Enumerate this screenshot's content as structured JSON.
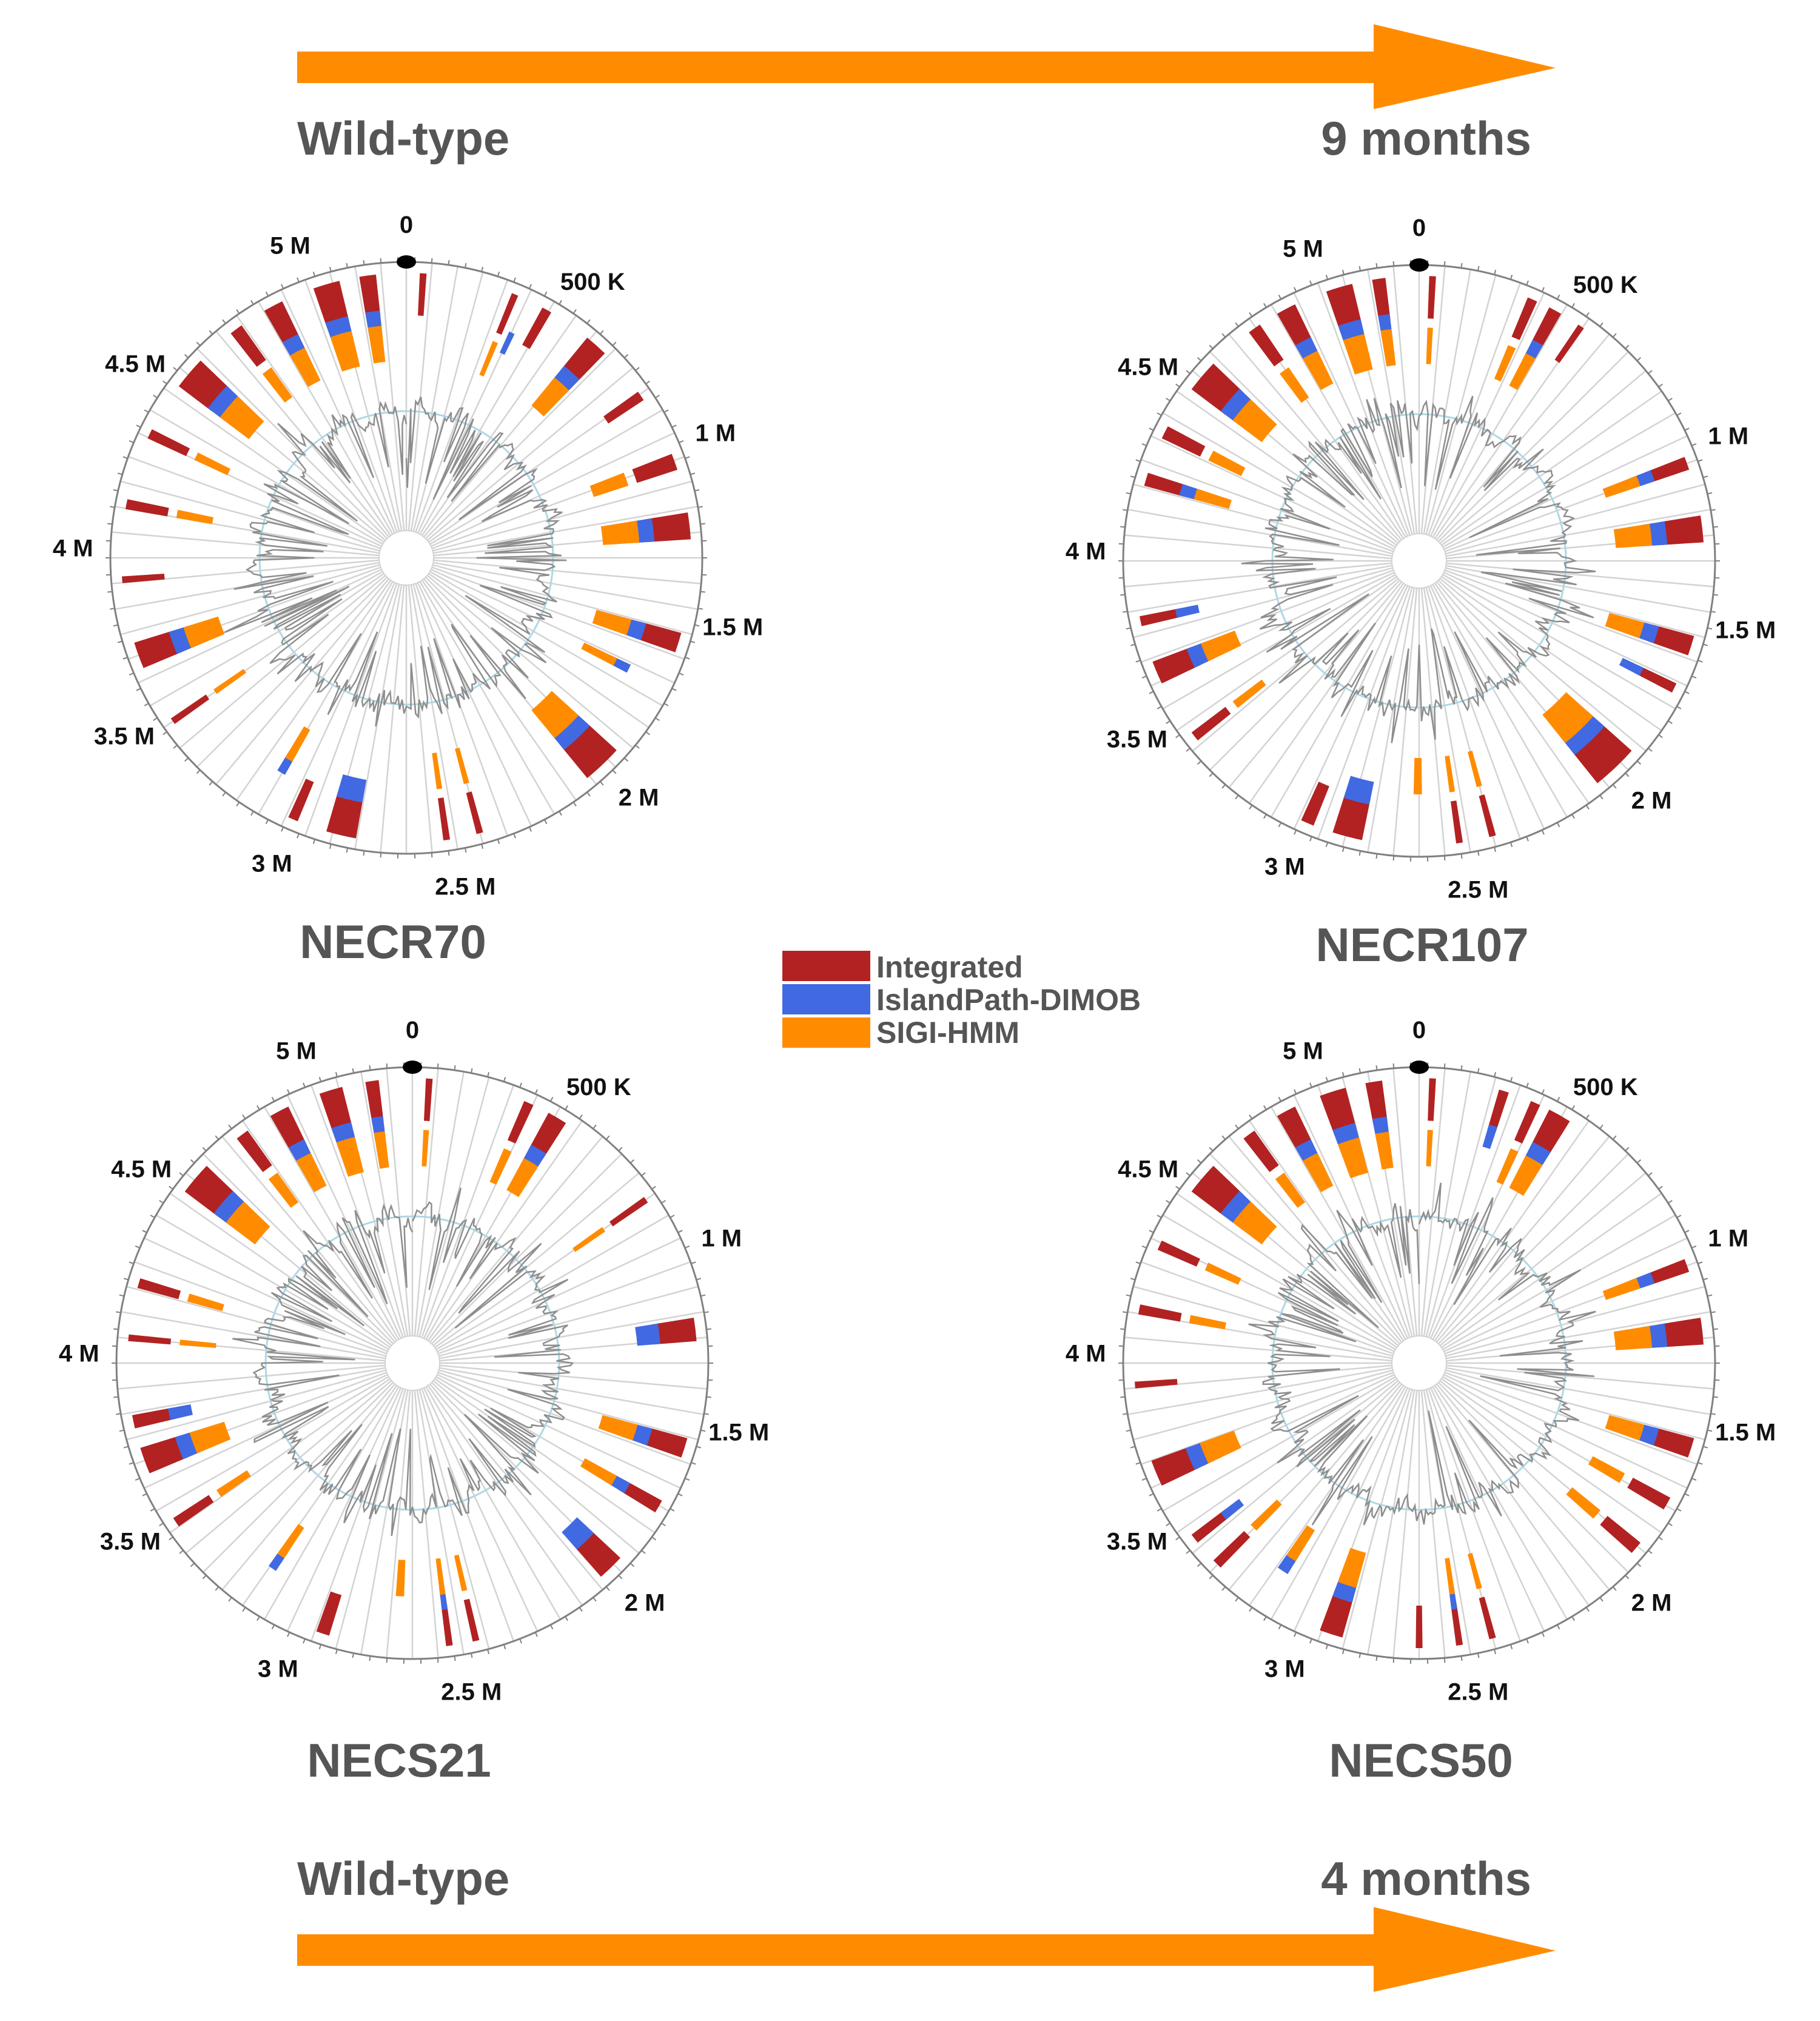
{
  "colors": {
    "integrated": "#b22222",
    "islandpath": "#4169e1",
    "sigi": "#ff8c00",
    "arrow": "#ff8c00",
    "ring": "#808080",
    "spoke": "#d3d3d3",
    "gc_line": "#8e8e8e",
    "gc_baseline": "#add8e6",
    "text_dark": "#555555",
    "origin_dot": "#000000"
  },
  "top_row": {
    "left_label": "Wild-type",
    "right_label": "9 months"
  },
  "bottom_row": {
    "left_label": "Wild-type",
    "right_label": "4 months"
  },
  "legend": {
    "items": [
      {
        "label": "Integrated",
        "color_key": "integrated"
      },
      {
        "label": "IslandPath-DIMOB",
        "color_key": "islandpath"
      },
      {
        "label": "SIGI-HMM",
        "color_key": "sigi"
      }
    ]
  },
  "genome_ticks": [
    "0",
    "500 K",
    "1 M",
    "1.5 M",
    "2 M",
    "2.5 M",
    "3 M",
    "3.5 M",
    "4 M",
    "4.5 M",
    "5 M"
  ],
  "genome_size_mb": 5.3,
  "maps": [
    {
      "name": "NECR70",
      "islands": [
        {
          "pos": 0.04,
          "len": 0.02,
          "methods": [
            "integrated"
          ]
        },
        {
          "pos": 0.32,
          "len": 0.02,
          "methods": [
            "integrated",
            "sigi"
          ]
        },
        {
          "pos": 0.36,
          "len": 0.02,
          "methods": [
            "islandpath"
          ]
        },
        {
          "pos": 0.42,
          "len": 0.03,
          "methods": [
            "integrated"
          ]
        },
        {
          "pos": 0.58,
          "len": 0.07,
          "methods": [
            "integrated",
            "islandpath",
            "sigi"
          ]
        },
        {
          "pos": 0.8,
          "len": 0.03,
          "methods": [
            "integrated"
          ]
        },
        {
          "pos": 1.01,
          "len": 0.05,
          "methods": [
            "integrated",
            "sigi"
          ]
        },
        {
          "pos": 1.19,
          "len": 0.08,
          "methods": [
            "integrated",
            "islandpath",
            "sigi"
          ]
        },
        {
          "pos": 1.55,
          "len": 0.06,
          "methods": [
            "integrated",
            "islandpath",
            "sigi"
          ]
        },
        {
          "pos": 1.7,
          "len": 0.03,
          "methods": [
            "islandpath",
            "sigi"
          ]
        },
        {
          "pos": 1.95,
          "len": 0.12,
          "methods": [
            "integrated",
            "islandpath",
            "sigi"
          ]
        },
        {
          "pos": 2.42,
          "len": 0.02,
          "methods": [
            "integrated",
            "sigi"
          ]
        },
        {
          "pos": 2.52,
          "len": 0.02,
          "methods": [
            "integrated",
            "sigi"
          ]
        },
        {
          "pos": 2.8,
          "len": 0.09,
          "methods": [
            "integrated",
            "islandpath"
          ]
        },
        {
          "pos": 2.98,
          "len": 0.03,
          "methods": [
            "integrated"
          ]
        },
        {
          "pos": 3.08,
          "len": 0.03,
          "methods": [
            "islandpath",
            "sigi"
          ]
        },
        {
          "pos": 3.45,
          "len": 0.02,
          "methods": [
            "integrated",
            "sigi"
          ]
        },
        {
          "pos": 3.64,
          "len": 0.08,
          "methods": [
            "integrated",
            "islandpath",
            "sigi"
          ]
        },
        {
          "pos": 3.9,
          "len": 0.02,
          "methods": [
            "integrated"
          ]
        },
        {
          "pos": 4.12,
          "len": 0.03,
          "methods": [
            "integrated",
            "sigi"
          ]
        },
        {
          "pos": 4.34,
          "len": 0.03,
          "methods": [
            "integrated",
            "sigi"
          ]
        },
        {
          "pos": 4.52,
          "len": 0.1,
          "methods": [
            "integrated",
            "islandpath",
            "sigi"
          ]
        },
        {
          "pos": 4.74,
          "len": 0.04,
          "methods": [
            "integrated",
            "sigi"
          ]
        },
        {
          "pos": 4.86,
          "len": 0.06,
          "methods": [
            "integrated",
            "islandpath",
            "sigi"
          ]
        },
        {
          "pos": 5.02,
          "len": 0.08,
          "methods": [
            "integrated",
            "islandpath",
            "sigi"
          ]
        },
        {
          "pos": 5.16,
          "len": 0.05,
          "methods": [
            "integrated",
            "islandpath",
            "sigi"
          ]
        }
      ]
    },
    {
      "name": "NECR107",
      "islands": [
        {
          "pos": 0.03,
          "len": 0.02,
          "methods": [
            "integrated",
            "sigi"
          ]
        },
        {
          "pos": 0.33,
          "len": 0.03,
          "methods": [
            "integrated",
            "sigi"
          ]
        },
        {
          "pos": 0.4,
          "len": 0.04,
          "methods": [
            "integrated",
            "islandpath",
            "sigi"
          ]
        },
        {
          "pos": 0.5,
          "len": 0.02,
          "methods": [
            "integrated"
          ]
        },
        {
          "pos": 1.01,
          "len": 0.04,
          "methods": [
            "integrated",
            "islandpath",
            "sigi"
          ]
        },
        {
          "pos": 1.19,
          "len": 0.08,
          "methods": [
            "integrated",
            "islandpath",
            "sigi"
          ]
        },
        {
          "pos": 1.55,
          "len": 0.06,
          "methods": [
            "integrated",
            "islandpath",
            "sigi"
          ]
        },
        {
          "pos": 1.7,
          "len": 0.03,
          "methods": [
            "integrated",
            "islandpath"
          ]
        },
        {
          "pos": 1.94,
          "len": 0.14,
          "methods": [
            "integrated",
            "islandpath",
            "sigi"
          ]
        },
        {
          "pos": 2.42,
          "len": 0.02,
          "methods": [
            "integrated",
            "sigi"
          ]
        },
        {
          "pos": 2.52,
          "len": 0.02,
          "methods": [
            "integrated",
            "sigi"
          ]
        },
        {
          "pos": 2.64,
          "len": 0.03,
          "methods": [
            "sigi"
          ]
        },
        {
          "pos": 2.82,
          "len": 0.09,
          "methods": [
            "integrated",
            "islandpath"
          ]
        },
        {
          "pos": 2.97,
          "len": 0.04,
          "methods": [
            "integrated"
          ]
        },
        {
          "pos": 3.4,
          "len": 0.03,
          "methods": [
            "integrated",
            "sigi"
          ]
        },
        {
          "pos": 3.6,
          "len": 0.07,
          "methods": [
            "integrated",
            "islandpath",
            "sigi"
          ]
        },
        {
          "pos": 3.78,
          "len": 0.03,
          "methods": [
            "integrated",
            "islandpath"
          ]
        },
        {
          "pos": 4.2,
          "len": 0.04,
          "methods": [
            "integrated",
            "islandpath",
            "sigi"
          ]
        },
        {
          "pos": 4.35,
          "len": 0.04,
          "methods": [
            "integrated",
            "sigi"
          ]
        },
        {
          "pos": 4.52,
          "len": 0.1,
          "methods": [
            "integrated",
            "islandpath",
            "sigi"
          ]
        },
        {
          "pos": 4.76,
          "len": 0.04,
          "methods": [
            "integrated",
            "sigi"
          ]
        },
        {
          "pos": 4.86,
          "len": 0.06,
          "methods": [
            "integrated",
            "islandpath",
            "sigi"
          ]
        },
        {
          "pos": 5.02,
          "len": 0.08,
          "methods": [
            "integrated",
            "islandpath",
            "sigi"
          ]
        },
        {
          "pos": 5.16,
          "len": 0.04,
          "methods": [
            "integrated",
            "islandpath",
            "sigi"
          ]
        }
      ]
    },
    {
      "name": "NECS21",
      "islands": [
        {
          "pos": 0.04,
          "len": 0.02,
          "methods": [
            "integrated",
            "sigi"
          ]
        },
        {
          "pos": 0.34,
          "len": 0.03,
          "methods": [
            "integrated",
            "sigi"
          ]
        },
        {
          "pos": 0.42,
          "len": 0.06,
          "methods": [
            "integrated",
            "islandpath",
            "sigi"
          ]
        },
        {
          "pos": 0.8,
          "len": 0.02,
          "methods": [
            "integrated",
            "sigi"
          ]
        },
        {
          "pos": 1.19,
          "len": 0.07,
          "methods": [
            "integrated",
            "islandpath"
          ]
        },
        {
          "pos": 1.55,
          "len": 0.06,
          "methods": [
            "integrated",
            "islandpath",
            "sigi"
          ]
        },
        {
          "pos": 1.75,
          "len": 0.04,
          "methods": [
            "integrated",
            "islandpath",
            "sigi"
          ]
        },
        {
          "pos": 1.96,
          "len": 0.08,
          "methods": [
            "integrated",
            "islandpath"
          ]
        },
        {
          "pos": 2.45,
          "len": 0.02,
          "methods": [
            "integrated",
            "sigi"
          ]
        },
        {
          "pos": 2.53,
          "len": 0.02,
          "methods": [
            "integrated",
            "islandpath",
            "sigi"
          ]
        },
        {
          "pos": 2.68,
          "len": 0.03,
          "methods": [
            "sigi"
          ]
        },
        {
          "pos": 2.9,
          "len": 0.04,
          "methods": [
            "integrated"
          ]
        },
        {
          "pos": 3.14,
          "len": 0.03,
          "methods": [
            "islandpath",
            "sigi"
          ]
        },
        {
          "pos": 3.46,
          "len": 0.03,
          "methods": [
            "integrated",
            "sigi"
          ]
        },
        {
          "pos": 3.64,
          "len": 0.08,
          "methods": [
            "integrated",
            "islandpath",
            "sigi"
          ]
        },
        {
          "pos": 3.78,
          "len": 0.04,
          "methods": [
            "integrated",
            "islandpath"
          ]
        },
        {
          "pos": 4.04,
          "len": 0.02,
          "methods": [
            "integrated",
            "sigi"
          ]
        },
        {
          "pos": 4.2,
          "len": 0.03,
          "methods": [
            "integrated",
            "sigi"
          ]
        },
        {
          "pos": 4.52,
          "len": 0.1,
          "methods": [
            "integrated",
            "islandpath",
            "sigi"
          ]
        },
        {
          "pos": 4.74,
          "len": 0.04,
          "methods": [
            "integrated",
            "sigi"
          ]
        },
        {
          "pos": 4.86,
          "len": 0.06,
          "methods": [
            "integrated",
            "islandpath",
            "sigi"
          ]
        },
        {
          "pos": 5.02,
          "len": 0.07,
          "methods": [
            "integrated",
            "islandpath",
            "sigi"
          ]
        },
        {
          "pos": 5.16,
          "len": 0.04,
          "methods": [
            "integrated",
            "islandpath",
            "sigi"
          ]
        }
      ]
    },
    {
      "name": "NECS50",
      "islands": [
        {
          "pos": 0.03,
          "len": 0.02,
          "methods": [
            "integrated",
            "sigi"
          ]
        },
        {
          "pos": 0.24,
          "len": 0.03,
          "methods": [
            "integrated",
            "islandpath"
          ]
        },
        {
          "pos": 0.34,
          "len": 0.03,
          "methods": [
            "integrated",
            "sigi"
          ]
        },
        {
          "pos": 0.4,
          "len": 0.07,
          "methods": [
            "integrated",
            "islandpath",
            "sigi"
          ]
        },
        {
          "pos": 1.01,
          "len": 0.04,
          "methods": [
            "integrated",
            "islandpath",
            "sigi"
          ]
        },
        {
          "pos": 1.19,
          "len": 0.08,
          "methods": [
            "integrated",
            "islandpath",
            "sigi"
          ]
        },
        {
          "pos": 1.55,
          "len": 0.06,
          "methods": [
            "integrated",
            "islandpath",
            "sigi"
          ]
        },
        {
          "pos": 1.74,
          "len": 0.04,
          "methods": [
            "integrated",
            "sigi"
          ]
        },
        {
          "pos": 1.9,
          "len": 0.04,
          "methods": [
            "integrated",
            "sigi"
          ]
        },
        {
          "pos": 2.42,
          "len": 0.02,
          "methods": [
            "integrated",
            "sigi"
          ]
        },
        {
          "pos": 2.52,
          "len": 0.02,
          "methods": [
            "integrated",
            "islandpath",
            "sigi"
          ]
        },
        {
          "pos": 2.64,
          "len": 0.02,
          "methods": [
            "integrated"
          ]
        },
        {
          "pos": 2.88,
          "len": 0.07,
          "methods": [
            "integrated",
            "islandpath",
            "sigi"
          ]
        },
        {
          "pos": 3.12,
          "len": 0.04,
          "methods": [
            "islandpath",
            "sigi"
          ]
        },
        {
          "pos": 3.3,
          "len": 0.03,
          "methods": [
            "integrated",
            "sigi"
          ]
        },
        {
          "pos": 3.4,
          "len": 0.03,
          "methods": [
            "integrated",
            "islandpath"
          ]
        },
        {
          "pos": 3.6,
          "len": 0.08,
          "methods": [
            "integrated",
            "islandpath",
            "sigi"
          ]
        },
        {
          "pos": 3.9,
          "len": 0.02,
          "methods": [
            "integrated"
          ]
        },
        {
          "pos": 4.12,
          "len": 0.03,
          "methods": [
            "integrated",
            "sigi"
          ]
        },
        {
          "pos": 4.32,
          "len": 0.03,
          "methods": [
            "integrated",
            "sigi"
          ]
        },
        {
          "pos": 4.52,
          "len": 0.1,
          "methods": [
            "integrated",
            "islandpath",
            "sigi"
          ]
        },
        {
          "pos": 4.74,
          "len": 0.04,
          "methods": [
            "integrated",
            "sigi"
          ]
        },
        {
          "pos": 4.86,
          "len": 0.06,
          "methods": [
            "integrated",
            "islandpath",
            "sigi"
          ]
        },
        {
          "pos": 5.0,
          "len": 0.08,
          "methods": [
            "integrated",
            "islandpath",
            "sigi"
          ]
        },
        {
          "pos": 5.14,
          "len": 0.05,
          "methods": [
            "integrated",
            "islandpath",
            "sigi"
          ]
        }
      ]
    }
  ]
}
